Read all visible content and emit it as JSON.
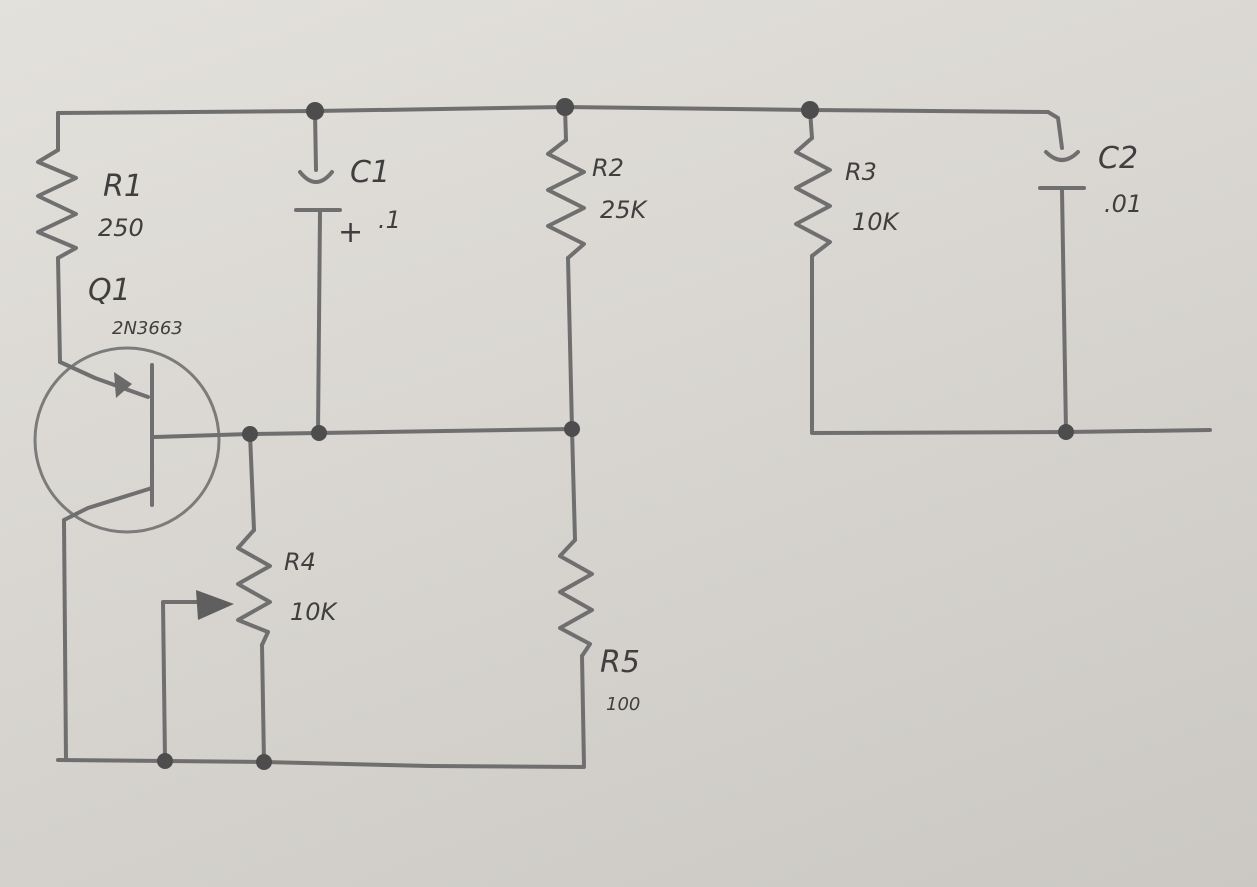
{
  "components": {
    "r1": {
      "name": "R1",
      "value": "250"
    },
    "c1": {
      "name": "C1",
      "polarity": "+",
      "value": ".1"
    },
    "r2": {
      "name": "R2",
      "value": "25K"
    },
    "r3": {
      "name": "R3",
      "value": "10K"
    },
    "c2": {
      "name": "C2",
      "value": ".01"
    },
    "q1": {
      "name": "Q1",
      "part": "2N3663"
    },
    "r4": {
      "name": "R4",
      "value": "10K"
    },
    "r5": {
      "name": "R5",
      "value": "100"
    }
  }
}
